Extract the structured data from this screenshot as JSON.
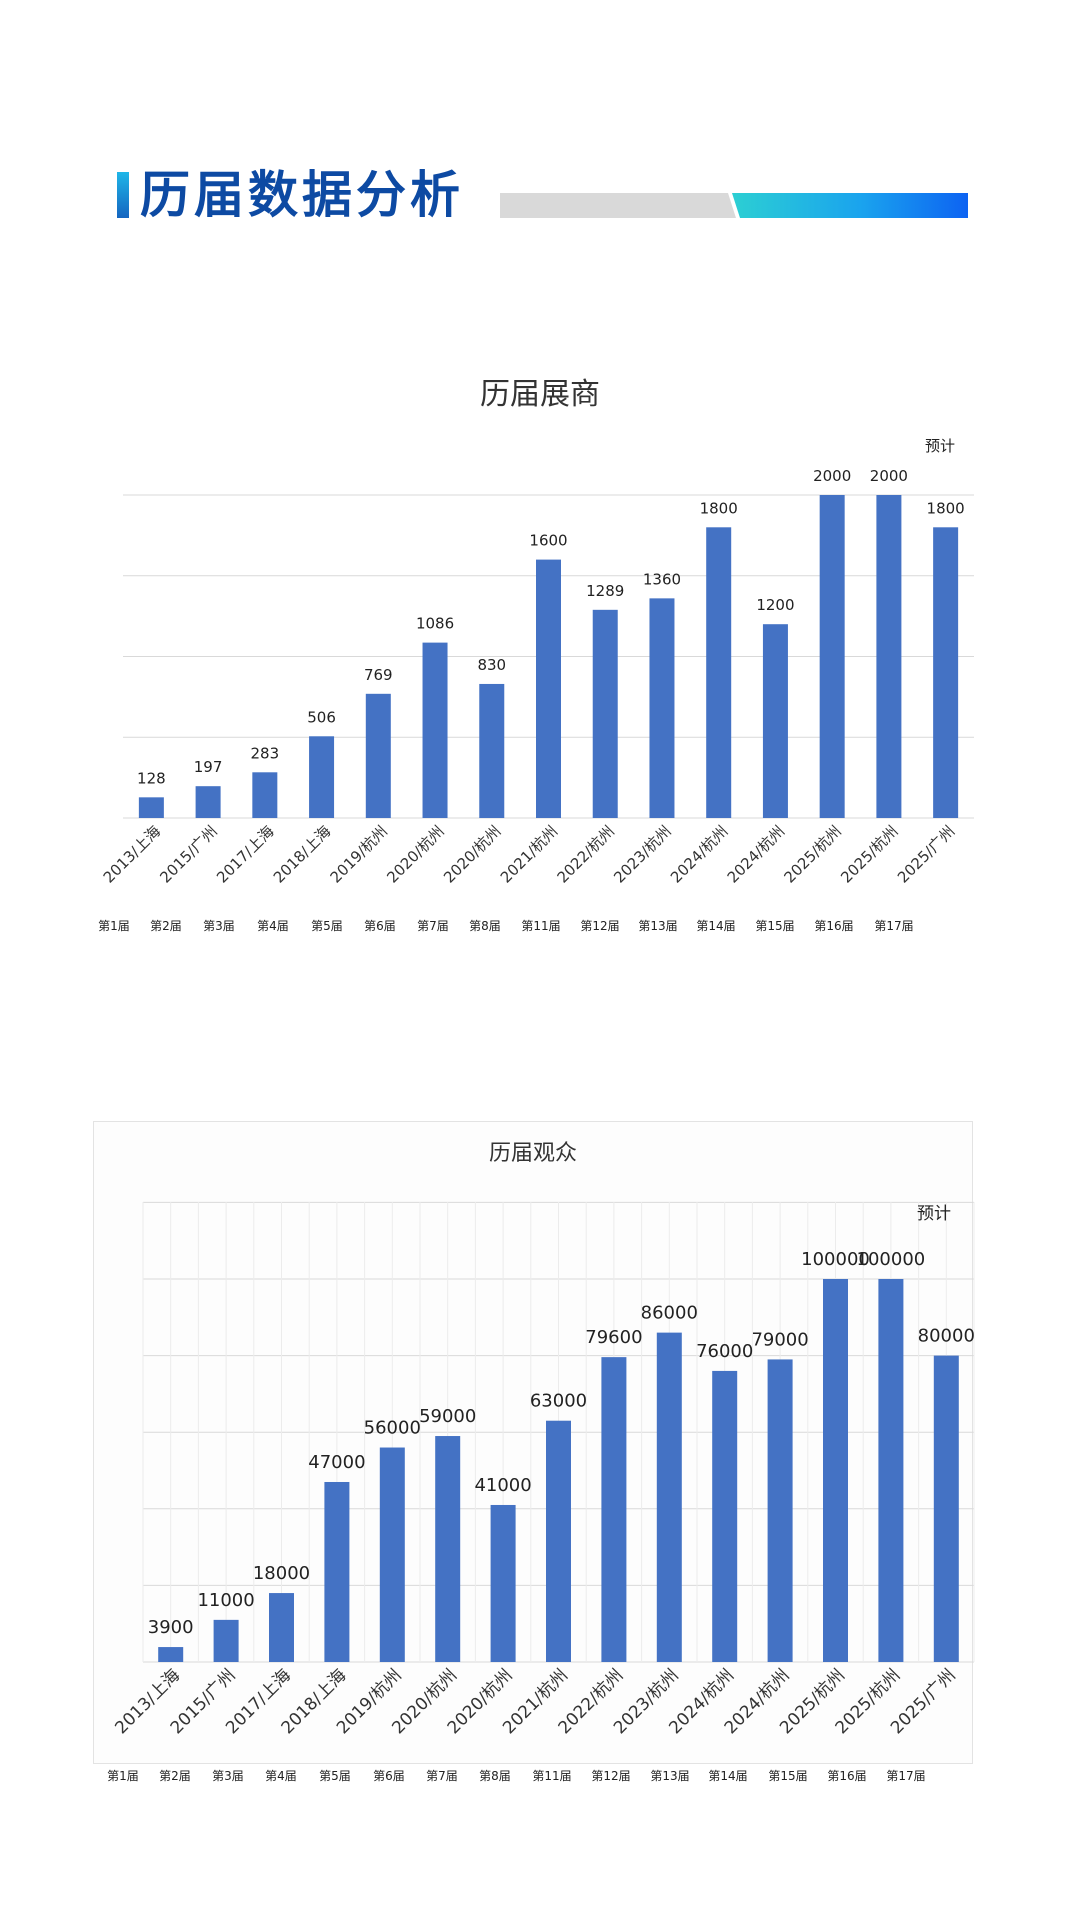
{
  "header": {
    "title": "历届数据分析"
  },
  "footnote_label": "预计",
  "chart_data": [
    {
      "type": "bar",
      "title": "历届展商",
      "categories": [
        "2013/上海",
        "2015/广州",
        "2017/上海",
        "2018/上海",
        "2019/杭州",
        "2020/杭州",
        "2020/杭州",
        "2021/杭州",
        "2022/杭州",
        "2023/杭州",
        "2024/杭州",
        "2024/杭州",
        "2025/杭州",
        "2025/杭州",
        "2025/广州"
      ],
      "sessions": [
        "第1届",
        "第2届",
        "第3届",
        "第4届",
        "第5届",
        "第6届",
        "第7届",
        "第8届",
        "第11届",
        "第12届",
        "第13届",
        "第14届",
        "第15届",
        "第16届",
        "第17届"
      ],
      "values": [
        128,
        197,
        283,
        506,
        769,
        1086,
        830,
        1600,
        1289,
        1360,
        1800,
        1200,
        2000,
        2000,
        1800
      ],
      "ylim": [
        0,
        2000
      ],
      "annotation": "预计",
      "grid": true,
      "color": "#4472c4"
    },
    {
      "type": "bar",
      "title": "历届观众",
      "categories": [
        "2013/上海",
        "2015/广州",
        "2017/上海",
        "2018/上海",
        "2019/杭州",
        "2020/杭州",
        "2020/杭州",
        "2021/杭州",
        "2022/杭州",
        "2023/杭州",
        "2024/杭州",
        "2024/杭州",
        "2025/杭州",
        "2025/杭州",
        "2025/广州"
      ],
      "sessions": [
        "第1届",
        "第2届",
        "第3届",
        "第4届",
        "第5届",
        "第6届",
        "第7届",
        "第8届",
        "第11届",
        "第12届",
        "第13届",
        "第14届",
        "第15届",
        "第16届",
        "第17届"
      ],
      "values": [
        3900,
        11000,
        18000,
        47000,
        56000,
        59000,
        41000,
        63000,
        79600,
        86000,
        76000,
        79000,
        100000,
        100000,
        80000
      ],
      "ylim": [
        0,
        100000
      ],
      "annotation": "预计",
      "grid": true,
      "color": "#4472c4"
    }
  ]
}
